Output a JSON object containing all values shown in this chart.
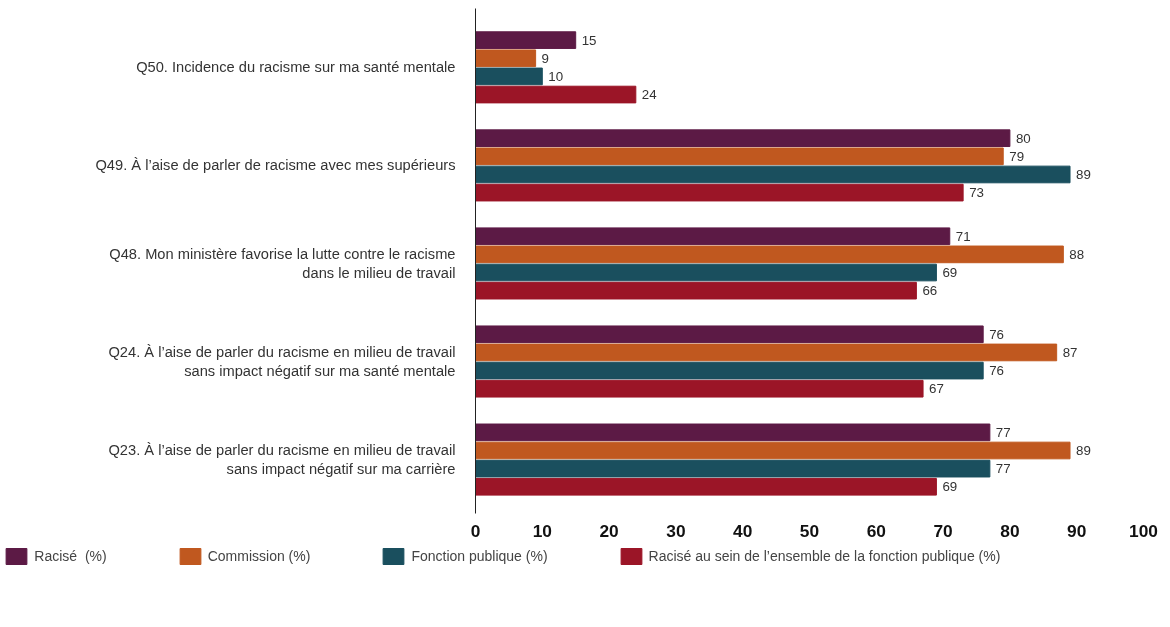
{
  "chart_data": {
    "type": "bar",
    "orientation": "horizontal",
    "categories": [
      "Q50. Incidence du racisme sur ma santé mentale",
      "Q49. À l’aise de parler de racisme avec mes supérieurs",
      "Q48. Mon ministère favorise la lutte contre le racisme\ndans le milieu de travail",
      "Q24. À l’aise de parler du racisme en milieu de travail\nsans impact négatif sur ma santé mentale",
      "Q23. À l’aise de parler du racisme en milieu de travail\nsans impact négatif sur ma carrière"
    ],
    "series": [
      {
        "name": "Racisé  (%)",
        "color": "#5c1a45",
        "values": [
          15,
          80,
          71,
          76,
          77
        ]
      },
      {
        "name": "Commission (%)",
        "color": "#c0581f",
        "values": [
          9,
          79,
          88,
          87,
          89
        ]
      },
      {
        "name": "Fonction publique (%)",
        "color": "#1a4f5e",
        "values": [
          10,
          89,
          69,
          76,
          77
        ]
      },
      {
        "name": "Racisé au sein de l’ensemble de la fonction publique (%)",
        "color": "#9b1527",
        "values": [
          24,
          73,
          66,
          67,
          69
        ]
      }
    ],
    "xlim": [
      0,
      100
    ],
    "xticks": [
      0,
      10,
      20,
      30,
      40,
      50,
      60,
      70,
      80,
      90,
      100
    ],
    "data_labels": true,
    "legend": "bottom",
    "grid": false
  }
}
